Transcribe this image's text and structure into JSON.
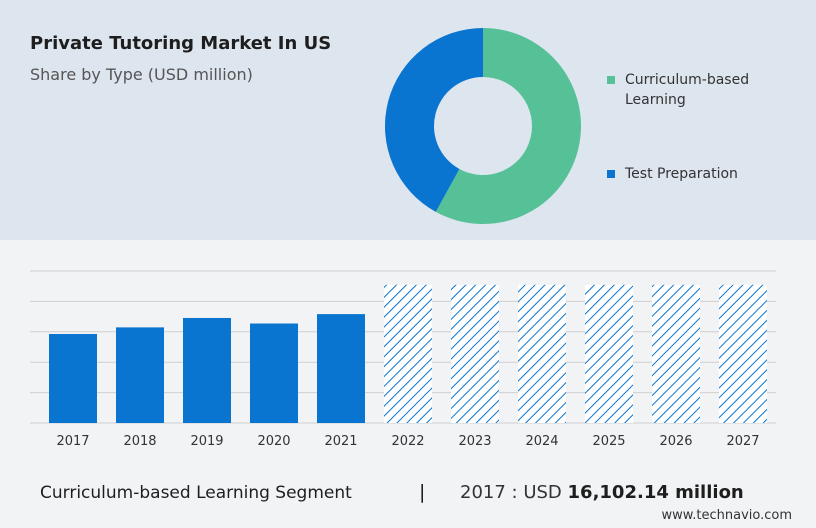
{
  "header": {
    "title": "Private Tutoring Market In US",
    "subtitle": "Share by Type (USD million)"
  },
  "legend": [
    {
      "label": "Curriculum-based Learning",
      "color": "#56c196"
    },
    {
      "label": "Test Preparation",
      "color": "#0a74d1"
    }
  ],
  "chart_data": [
    {
      "type": "pie",
      "donut": true,
      "slices": [
        {
          "name": "Curriculum-based Learning",
          "value": 58,
          "color": "#56c196"
        },
        {
          "name": "Test Preparation",
          "value": 42,
          "color": "#0a74d1"
        }
      ]
    },
    {
      "type": "bar",
      "categories": [
        "2017",
        "2018",
        "2019",
        "2020",
        "2021",
        "2022",
        "2023",
        "2024",
        "2025",
        "2026",
        "2027"
      ],
      "values": [
        16102.14,
        17300,
        19000,
        18000,
        19700,
        25000,
        25000,
        25000,
        25000,
        25000,
        25000
      ],
      "forecast": [
        false,
        false,
        false,
        false,
        false,
        true,
        true,
        true,
        true,
        true,
        true
      ],
      "ylim": [
        0,
        27500
      ],
      "color": "#0a74d1",
      "grid": true,
      "xlabel": "",
      "ylabel": ""
    }
  ],
  "footer": {
    "segment_label": "Curriculum-based Learning Segment",
    "separator": "|",
    "year_prefix": "2017 : USD",
    "amount": "16,102.14 million"
  },
  "source": "www.technavio.com"
}
